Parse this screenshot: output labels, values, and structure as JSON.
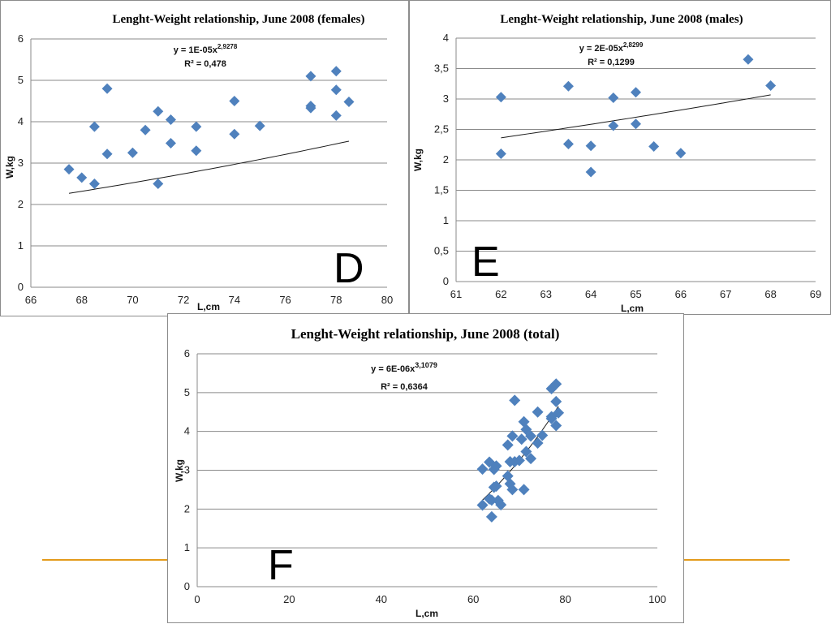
{
  "chart_data": [
    {
      "id": "D",
      "type": "scatter",
      "title": "Lenght-Weight relationship, June 2008 (females)",
      "xlabel": "L,cm",
      "ylabel": "W,kg",
      "panel_letter": "D",
      "equation": {
        "main": "y = 1E-05x",
        "exp": "2,9278",
        "r2": "R² = 0,478"
      },
      "xlim": [
        66,
        80
      ],
      "ylim": [
        0,
        6
      ],
      "xticks": [
        66,
        68,
        70,
        72,
        74,
        76,
        78,
        80
      ],
      "yticks": [
        0,
        1,
        2,
        3,
        4,
        5,
        6
      ],
      "xtick_labels": [
        "66",
        "68",
        "70",
        "72",
        "74",
        "76",
        "78",
        "80"
      ],
      "ytick_labels": [
        "0",
        "1",
        "2",
        "3",
        "4",
        "5",
        "6"
      ],
      "grid": "horizontal",
      "marker_color": "#4f81bd",
      "points": [
        [
          67.5,
          2.85
        ],
        [
          68,
          2.65
        ],
        [
          68.5,
          2.5
        ],
        [
          68.5,
          3.88
        ],
        [
          69,
          4.8
        ],
        [
          69,
          3.22
        ],
        [
          70,
          3.25
        ],
        [
          70.5,
          3.8
        ],
        [
          71,
          4.25
        ],
        [
          71,
          2.5
        ],
        [
          71.5,
          4.05
        ],
        [
          71.5,
          3.48
        ],
        [
          72.5,
          3.88
        ],
        [
          72.5,
          3.3
        ],
        [
          74,
          4.5
        ],
        [
          74,
          3.7
        ],
        [
          75,
          3.9
        ],
        [
          77,
          5.1
        ],
        [
          77,
          4.38
        ],
        [
          77,
          4.33
        ],
        [
          78,
          5.22
        ],
        [
          78,
          4.77
        ],
        [
          78,
          4.15
        ],
        [
          78.5,
          4.48
        ]
      ],
      "trend": {
        "a": 1e-05,
        "b": 2.9278,
        "xrange": [
          67.5,
          78.5
        ]
      }
    },
    {
      "id": "E",
      "type": "scatter",
      "title": "Lenght-Weight relationship, June 2008 (males)",
      "xlabel": "L,cm",
      "ylabel": "W,kg",
      "panel_letter": "E",
      "equation": {
        "main": "y = 2E-05x",
        "exp": "2,8299",
        "r2": "R² = 0,1299"
      },
      "xlim": [
        61,
        69
      ],
      "ylim": [
        0,
        4
      ],
      "xticks": [
        61,
        62,
        63,
        64,
        65,
        66,
        67,
        68,
        69
      ],
      "yticks": [
        0,
        0.5,
        1,
        1.5,
        2,
        2.5,
        3,
        3.5,
        4
      ],
      "xtick_labels": [
        "61",
        "62",
        "63",
        "64",
        "65",
        "66",
        "67",
        "68",
        "69"
      ],
      "ytick_labels": [
        "0",
        "0,5",
        "1",
        "1,5",
        "2",
        "2,5",
        "3",
        "3,5",
        "4"
      ],
      "grid": "horizontal",
      "marker_color": "#4f81bd",
      "points": [
        [
          62,
          3.03
        ],
        [
          62,
          2.1
        ],
        [
          63.5,
          3.21
        ],
        [
          63.5,
          2.26
        ],
        [
          64,
          2.23
        ],
        [
          64,
          1.8
        ],
        [
          64.5,
          3.02
        ],
        [
          64.5,
          2.56
        ],
        [
          65,
          3.11
        ],
        [
          65,
          2.59
        ],
        [
          65.4,
          2.22
        ],
        [
          66,
          2.11
        ],
        [
          67.5,
          3.65
        ],
        [
          68,
          3.22
        ]
      ],
      "trend": {
        "a": 2e-05,
        "b": 2.8299,
        "xrange": [
          62,
          68
        ]
      }
    },
    {
      "id": "F",
      "type": "scatter",
      "title": "Lenght-Weight relationship, June 2008 (total)",
      "xlabel": "L,cm",
      "ylabel": "W,kg",
      "panel_letter": "F",
      "equation": {
        "main": "y = 6E-06x",
        "exp": "3,1079",
        "r2": "R² = 0,6364"
      },
      "xlim": [
        0,
        100
      ],
      "ylim": [
        0,
        6
      ],
      "xticks": [
        0,
        20,
        40,
        60,
        80,
        100
      ],
      "yticks": [
        0,
        1,
        2,
        3,
        4,
        5,
        6
      ],
      "xtick_labels": [
        "0",
        "20",
        "40",
        "60",
        "80",
        "100"
      ],
      "ytick_labels": [
        "0",
        "1",
        "2",
        "3",
        "4",
        "5",
        "6"
      ],
      "grid": "horizontal",
      "marker_color": "#4f81bd",
      "points": [
        [
          62,
          3.03
        ],
        [
          62,
          2.1
        ],
        [
          63.5,
          3.21
        ],
        [
          63.5,
          2.26
        ],
        [
          64,
          2.23
        ],
        [
          64,
          1.8
        ],
        [
          64.5,
          3.02
        ],
        [
          64.5,
          2.56
        ],
        [
          65,
          3.11
        ],
        [
          65,
          2.59
        ],
        [
          65.4,
          2.22
        ],
        [
          66,
          2.11
        ],
        [
          67.5,
          3.65
        ],
        [
          68,
          3.22
        ],
        [
          67.5,
          2.85
        ],
        [
          68,
          2.65
        ],
        [
          68.5,
          2.5
        ],
        [
          68.5,
          3.88
        ],
        [
          69,
          4.8
        ],
        [
          69,
          3.22
        ],
        [
          70,
          3.25
        ],
        [
          70.5,
          3.8
        ],
        [
          71,
          4.25
        ],
        [
          71,
          2.5
        ],
        [
          71.5,
          4.05
        ],
        [
          71.5,
          3.48
        ],
        [
          72.5,
          3.88
        ],
        [
          72.5,
          3.3
        ],
        [
          74,
          4.5
        ],
        [
          74,
          3.7
        ],
        [
          75,
          3.9
        ],
        [
          77,
          5.1
        ],
        [
          77,
          4.38
        ],
        [
          77,
          4.33
        ],
        [
          78,
          5.22
        ],
        [
          78,
          4.77
        ],
        [
          78,
          4.15
        ],
        [
          78.5,
          4.48
        ]
      ],
      "trend": {
        "a": 6e-06,
        "b": 3.1079,
        "xrange": [
          62,
          78.5
        ]
      }
    }
  ]
}
